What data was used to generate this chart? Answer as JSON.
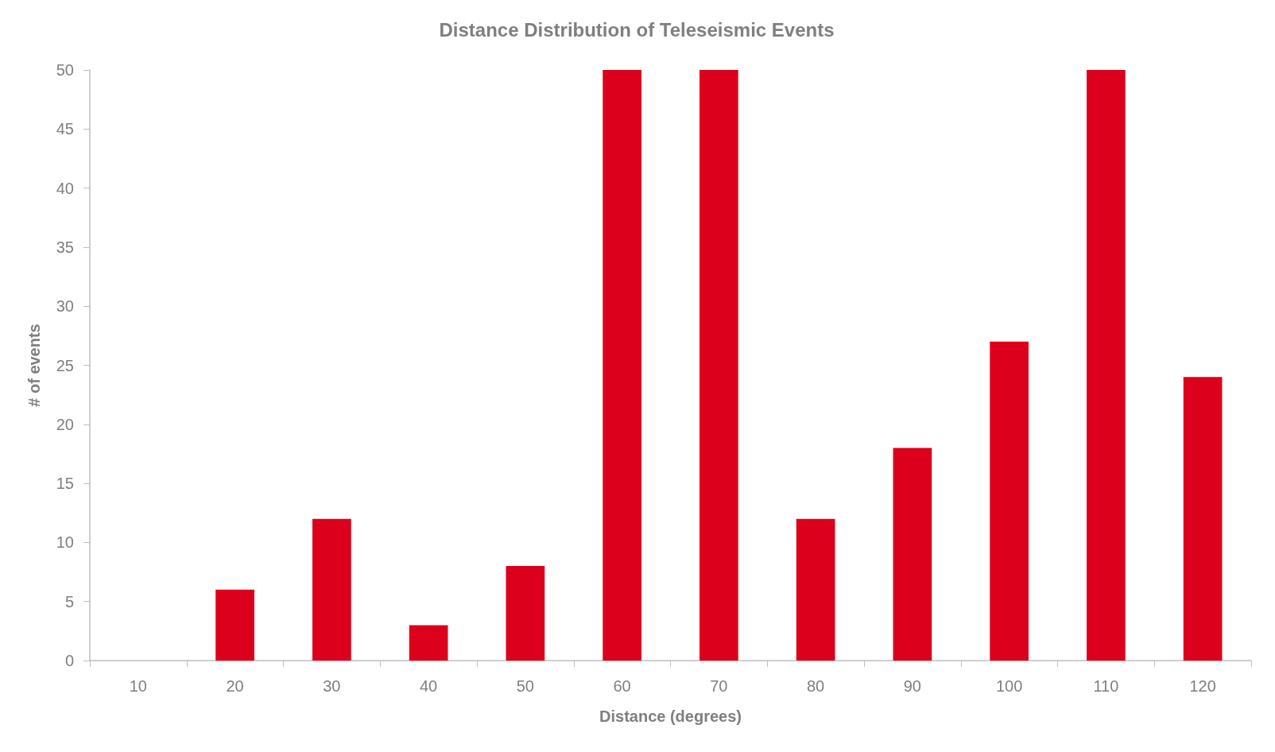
{
  "chart_data": {
    "type": "bar",
    "title": "Distance Distribution of Teleseismic Events",
    "xlabel": "Distance (degrees)",
    "ylabel": "# of events",
    "categories": [
      "10",
      "20",
      "30",
      "40",
      "50",
      "60",
      "70",
      "80",
      "90",
      "100",
      "110",
      "120"
    ],
    "values": [
      0,
      6,
      12,
      3,
      8,
      50,
      50,
      12,
      18,
      27,
      50,
      24
    ],
    "color": "#dc001c",
    "ylim": [
      0,
      50
    ],
    "yticks": [
      0,
      5,
      10,
      15,
      20,
      25,
      30,
      35,
      40,
      45,
      50
    ],
    "grid": false
  }
}
